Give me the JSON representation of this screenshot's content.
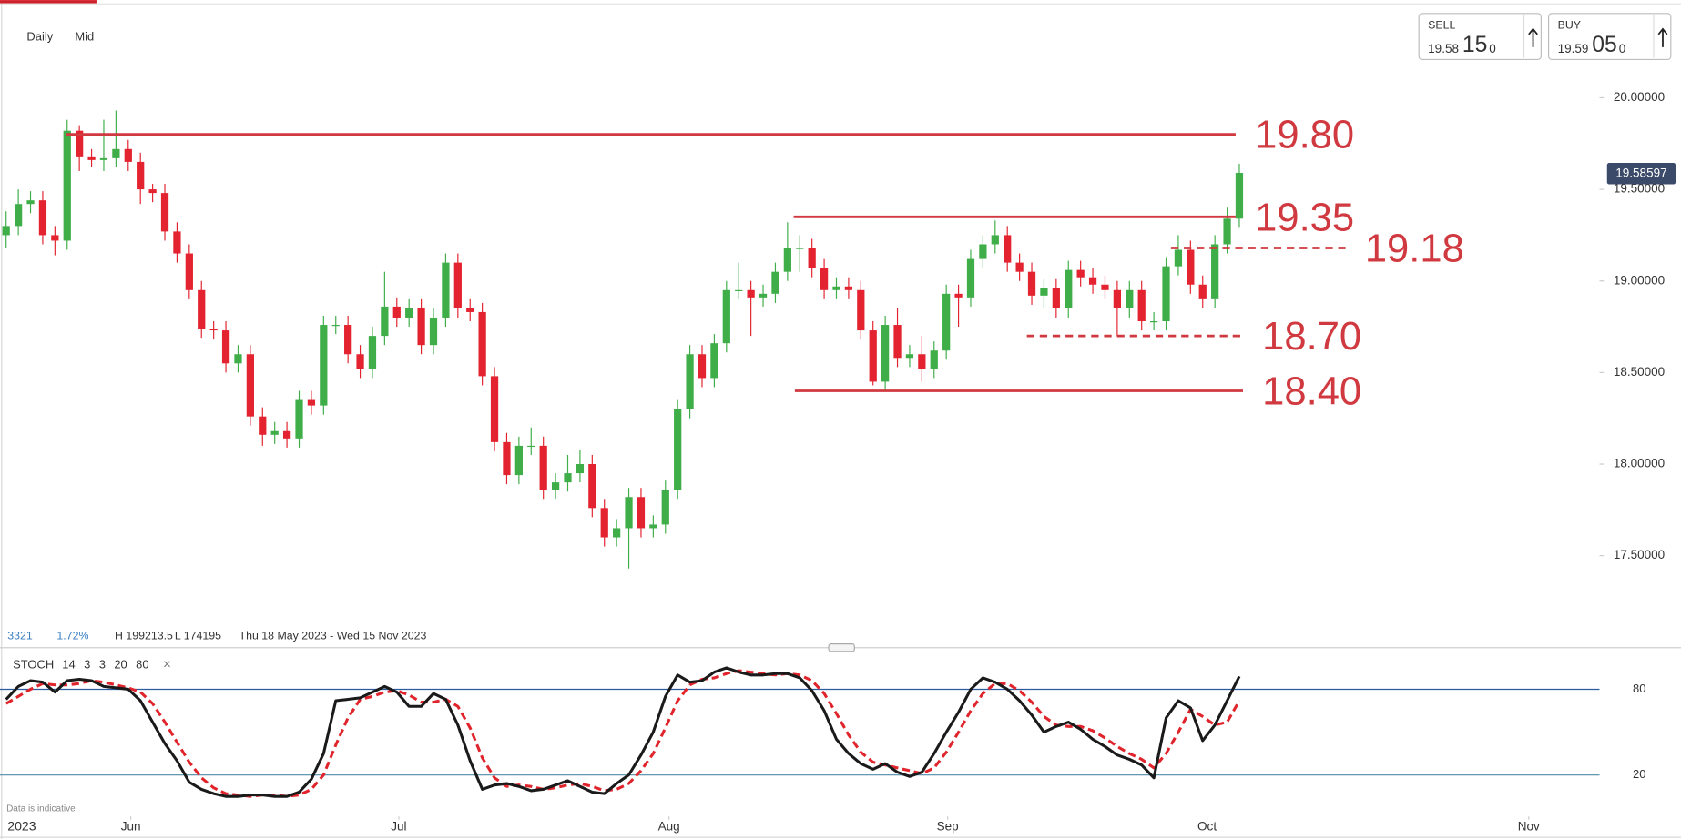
{
  "toolbar": {
    "interval": "Daily",
    "price_type": "Mid"
  },
  "quotes": {
    "sell": {
      "label": "SELL",
      "big_figure": "19.58",
      "pips": "15",
      "fraction": "0"
    },
    "buy": {
      "label": "BUY",
      "big_figure": "19.59",
      "pips": "05",
      "fraction": "0"
    }
  },
  "chart_data": [
    {
      "type": "candlestick",
      "up_color": "#3fae49",
      "down_color": "#e3232f",
      "xlim": [
        -0.5,
        130.5
      ],
      "ylim": [
        17.1,
        20.2
      ],
      "yticks": [
        {
          "value": 20,
          "label": "20.00000"
        },
        {
          "value": 19.5,
          "label": "19.50000"
        },
        {
          "value": 19,
          "label": "19.00000"
        },
        {
          "value": 18.5,
          "label": "18.50000"
        },
        {
          "value": 18,
          "label": "18.00000"
        },
        {
          "value": 17.5,
          "label": "17.50000"
        }
      ],
      "current_price": 19.58597,
      "level_color": "#d0393f",
      "levels": [
        {
          "value": 19.8,
          "label": "19.80",
          "style": "solid",
          "from": 4.94,
          "to": 100.7
        },
        {
          "value": 19.35,
          "label": "19.35",
          "style": "solid",
          "from": 64.5,
          "to": 100.7
        },
        {
          "value": 19.18,
          "label": "19.18",
          "style": "dashed",
          "from": 95.4,
          "to": 109.7
        },
        {
          "value": 18.7,
          "label": "18.70",
          "style": "dashed",
          "from": 83.6,
          "to": 101.3
        },
        {
          "value": 18.4,
          "label": "18.40",
          "style": "solid",
          "from": 64.6,
          "to": 101.3
        }
      ],
      "info": {
        "count": "3321",
        "change": "1.72%",
        "high": "H 199213.5",
        "low": "L 174195",
        "range": "Thu 18 May 2023 - Wed 15 Nov 2023"
      },
      "candles": [
        [
          19.25,
          19.38,
          19.18,
          19.3
        ],
        [
          19.3,
          19.5,
          19.25,
          19.42
        ],
        [
          19.42,
          19.49,
          19.37,
          19.44
        ],
        [
          19.44,
          19.49,
          19.2,
          19.25
        ],
        [
          19.25,
          19.3,
          19.14,
          19.22
        ],
        [
          19.22,
          19.88,
          19.17,
          19.82
        ],
        [
          19.82,
          19.85,
          19.6,
          19.68
        ],
        [
          19.68,
          19.72,
          19.62,
          19.66
        ],
        [
          19.66,
          19.88,
          19.6,
          19.67
        ],
        [
          19.67,
          19.93,
          19.62,
          19.72
        ],
        [
          19.72,
          19.77,
          19.6,
          19.65
        ],
        [
          19.65,
          19.7,
          19.42,
          19.5
        ],
        [
          19.5,
          19.53,
          19.43,
          19.48
        ],
        [
          19.48,
          19.53,
          19.22,
          19.27
        ],
        [
          19.27,
          19.32,
          19.1,
          19.15
        ],
        [
          19.15,
          19.2,
          18.9,
          18.95
        ],
        [
          18.95,
          19.0,
          18.69,
          18.74
        ],
        [
          18.74,
          18.78,
          18.68,
          18.73
        ],
        [
          18.73,
          18.78,
          18.5,
          18.55
        ],
        [
          18.55,
          18.65,
          18.5,
          18.6
        ],
        [
          18.6,
          18.65,
          18.21,
          18.26
        ],
        [
          18.26,
          18.31,
          18.1,
          18.16
        ],
        [
          18.16,
          18.23,
          18.11,
          18.18
        ],
        [
          18.18,
          18.23,
          18.09,
          18.14
        ],
        [
          18.14,
          18.4,
          18.09,
          18.35
        ],
        [
          18.35,
          18.4,
          18.27,
          18.32
        ],
        [
          18.32,
          18.81,
          18.27,
          18.76
        ],
        [
          18.76,
          18.81,
          18.71,
          18.76
        ],
        [
          18.76,
          18.81,
          18.55,
          18.6
        ],
        [
          18.6,
          18.65,
          18.47,
          18.52
        ],
        [
          18.52,
          18.75,
          18.47,
          18.7
        ],
        [
          18.7,
          19.05,
          18.65,
          18.86
        ],
        [
          18.86,
          18.91,
          18.75,
          18.8
        ],
        [
          18.8,
          18.9,
          18.75,
          18.85
        ],
        [
          18.85,
          18.9,
          18.6,
          18.65
        ],
        [
          18.65,
          18.85,
          18.6,
          18.8
        ],
        [
          18.8,
          19.15,
          18.75,
          19.1
        ],
        [
          19.1,
          19.15,
          18.8,
          18.85
        ],
        [
          18.85,
          18.9,
          18.78,
          18.83
        ],
        [
          18.83,
          18.88,
          18.43,
          18.48
        ],
        [
          18.48,
          18.53,
          18.07,
          18.12
        ],
        [
          18.12,
          18.17,
          17.89,
          17.94
        ],
        [
          17.94,
          18.15,
          17.89,
          18.1
        ],
        [
          18.1,
          18.2,
          18.05,
          18.1
        ],
        [
          18.1,
          18.15,
          17.81,
          17.86
        ],
        [
          17.86,
          17.95,
          17.81,
          17.9
        ],
        [
          17.9,
          18.05,
          17.85,
          17.95
        ],
        [
          17.95,
          18.08,
          17.9,
          18.0
        ],
        [
          18.0,
          18.05,
          17.71,
          17.76
        ],
        [
          17.76,
          17.81,
          17.55,
          17.6
        ],
        [
          17.6,
          17.7,
          17.55,
          17.65
        ],
        [
          17.65,
          17.87,
          17.43,
          17.82
        ],
        [
          17.82,
          17.87,
          17.6,
          17.65
        ],
        [
          17.65,
          17.72,
          17.6,
          17.67
        ],
        [
          17.67,
          17.91,
          17.62,
          17.86
        ],
        [
          17.86,
          18.35,
          17.81,
          18.3
        ],
        [
          18.3,
          18.65,
          18.25,
          18.6
        ],
        [
          18.6,
          18.65,
          18.42,
          18.47
        ],
        [
          18.47,
          18.71,
          18.42,
          18.66
        ],
        [
          18.66,
          19.0,
          18.61,
          18.95
        ],
        [
          18.95,
          19.1,
          18.9,
          18.95
        ],
        [
          18.95,
          19.0,
          18.7,
          18.91
        ],
        [
          18.91,
          18.98,
          18.86,
          18.93
        ],
        [
          18.93,
          19.1,
          18.88,
          19.05
        ],
        [
          19.05,
          19.32,
          19.0,
          19.18
        ],
        [
          19.18,
          19.25,
          19.05,
          19.18
        ],
        [
          19.18,
          19.23,
          19.02,
          19.07
        ],
        [
          19.07,
          19.12,
          18.9,
          18.95
        ],
        [
          18.95,
          19.02,
          18.9,
          18.97
        ],
        [
          18.97,
          19.02,
          18.9,
          18.95
        ],
        [
          18.95,
          19.0,
          18.68,
          18.73
        ],
        [
          18.73,
          18.78,
          18.43,
          18.45
        ],
        [
          18.45,
          18.81,
          18.4,
          18.76
        ],
        [
          18.76,
          18.85,
          18.53,
          18.58
        ],
        [
          18.58,
          18.65,
          18.53,
          18.6
        ],
        [
          18.6,
          18.7,
          18.45,
          18.52
        ],
        [
          18.52,
          18.67,
          18.47,
          18.62
        ],
        [
          18.62,
          18.98,
          18.57,
          18.93
        ],
        [
          18.93,
          18.98,
          18.75,
          18.91
        ],
        [
          18.91,
          19.17,
          18.86,
          19.12
        ],
        [
          19.12,
          19.25,
          19.07,
          19.2
        ],
        [
          19.2,
          19.33,
          19.15,
          19.25
        ],
        [
          19.25,
          19.3,
          19.05,
          19.1
        ],
        [
          19.1,
          19.15,
          19.0,
          19.05
        ],
        [
          19.05,
          19.1,
          18.87,
          18.92
        ],
        [
          18.92,
          19.01,
          18.85,
          18.96
        ],
        [
          18.96,
          19.01,
          18.8,
          18.85
        ],
        [
          18.85,
          19.11,
          18.8,
          19.06
        ],
        [
          19.06,
          19.11,
          18.97,
          19.02
        ],
        [
          19.02,
          19.07,
          18.93,
          18.98
        ],
        [
          18.98,
          19.03,
          18.9,
          18.95
        ],
        [
          18.95,
          19.0,
          18.7,
          18.85
        ],
        [
          18.85,
          19.0,
          18.8,
          18.95
        ],
        [
          18.95,
          19.0,
          18.73,
          18.78
        ],
        [
          18.78,
          18.83,
          18.73,
          18.78
        ],
        [
          18.78,
          19.13,
          18.73,
          19.08
        ],
        [
          19.08,
          19.25,
          19.03,
          19.17
        ],
        [
          19.17,
          19.22,
          18.93,
          18.98
        ],
        [
          18.98,
          19.03,
          18.85,
          18.9
        ],
        [
          18.9,
          19.25,
          18.85,
          19.2
        ],
        [
          19.2,
          19.4,
          19.15,
          19.34
        ],
        [
          19.34,
          19.64,
          19.29,
          19.59
        ]
      ]
    },
    {
      "type": "line",
      "name": "STOCH",
      "params": [
        14,
        3,
        3,
        20,
        80
      ],
      "close": "×",
      "xlim": [
        -0.5,
        130.5
      ],
      "ylim": [
        -3,
        105
      ],
      "yticks": [
        80,
        20
      ],
      "tick_colors": [
        "#2d5c9e",
        "#4f8aa6"
      ],
      "xticks": [
        {
          "value": 10.21,
          "label": "Jun"
        },
        {
          "value": 32.16,
          "label": "Jul"
        },
        {
          "value": 54.29,
          "label": "Aug"
        },
        {
          "value": 77.11,
          "label": "Sep"
        },
        {
          "value": 98.36,
          "label": "Oct"
        },
        {
          "value": 124.7,
          "label": "Nov"
        }
      ],
      "year_label": "2023",
      "note": "Data is indicative",
      "series": [
        {
          "name": "%K",
          "color": "#1a1a1a",
          "dashed": false,
          "values": [
            73,
            82,
            86,
            85,
            78,
            86,
            87,
            86,
            82,
            81,
            80,
            72,
            57,
            42,
            30,
            15,
            10,
            7,
            5,
            5,
            6,
            6,
            5,
            5,
            8,
            17,
            35,
            72,
            73,
            74,
            78,
            82,
            78,
            68,
            68,
            77,
            73,
            55,
            30,
            10,
            13,
            14,
            12,
            9,
            10,
            13,
            16,
            12,
            8,
            7,
            14,
            20,
            34,
            50,
            75,
            90,
            85,
            86,
            92,
            95,
            92,
            90,
            90,
            91,
            91,
            88,
            79,
            65,
            45,
            35,
            28,
            24,
            28,
            22,
            19,
            22,
            35,
            50,
            64,
            80,
            88,
            85,
            80,
            72,
            62,
            50,
            54,
            57,
            52,
            45,
            40,
            34,
            31,
            27,
            18,
            60,
            72,
            67,
            44,
            55,
            72,
            89
          ]
        },
        {
          "name": "%D",
          "color": "#e0242c",
          "dashed": true,
          "values": [
            70,
            75,
            80,
            84,
            83,
            83,
            84,
            86,
            85,
            83,
            81,
            78,
            70,
            57,
            43,
            29,
            18,
            11,
            7,
            6,
            5,
            6,
            6,
            5,
            6,
            10,
            20,
            41,
            60,
            73,
            75,
            78,
            79,
            76,
            71,
            71,
            73,
            68,
            53,
            32,
            18,
            12,
            13,
            12,
            10,
            11,
            13,
            14,
            12,
            9,
            10,
            14,
            23,
            35,
            53,
            72,
            83,
            87,
            88,
            91,
            93,
            92,
            91,
            90,
            91,
            90,
            86,
            77,
            63,
            48,
            36,
            29,
            27,
            25,
            23,
            21,
            25,
            36,
            50,
            65,
            77,
            84,
            84,
            79,
            71,
            61,
            55,
            54,
            54,
            51,
            46,
            40,
            35,
            31,
            25,
            35,
            50,
            66,
            61,
            55,
            57,
            72
          ]
        }
      ]
    }
  ]
}
